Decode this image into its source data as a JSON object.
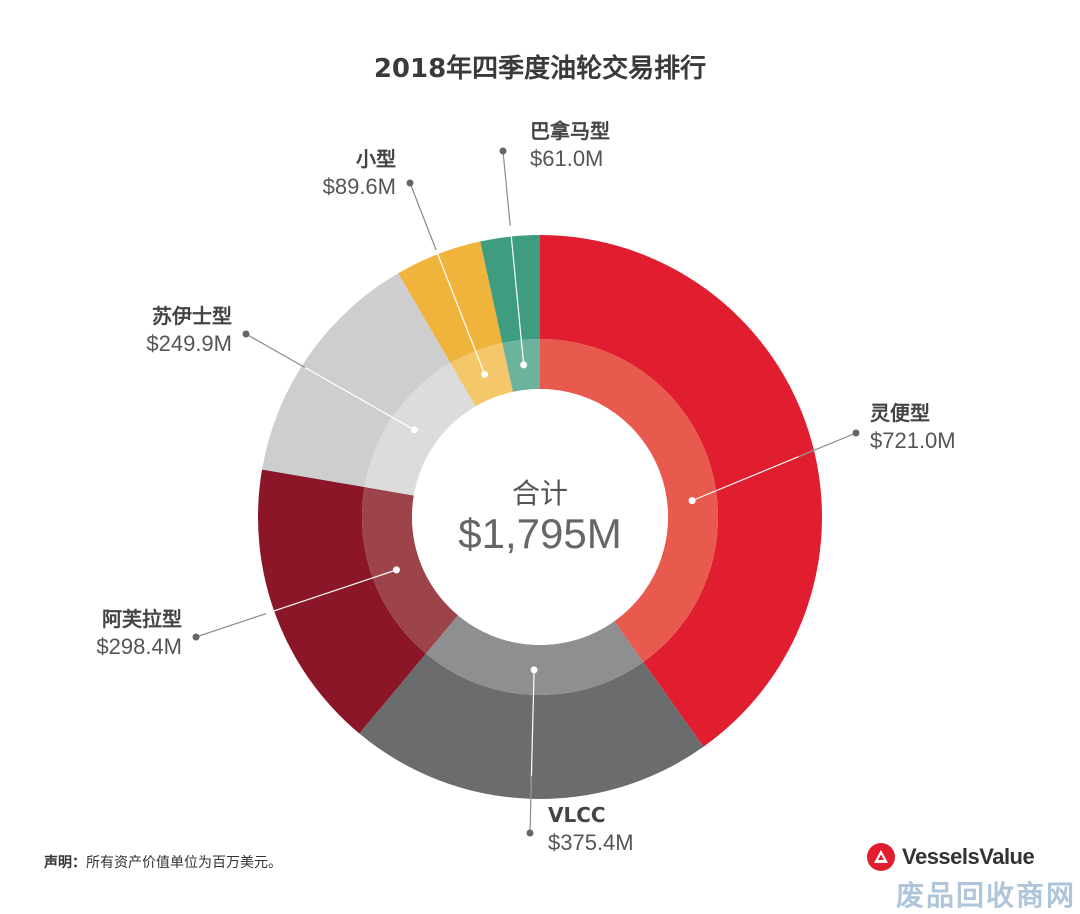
{
  "chart_data": {
    "type": "pie",
    "variant": "donut",
    "title": "2018年四季度油轮交易排行",
    "center_label": "合计",
    "center_value": "$1,795M",
    "unit": "$M",
    "total": 1795,
    "slices": [
      {
        "key": "handy",
        "name": "灵便型",
        "value": 721.0,
        "label": "$721.0M",
        "color": "#e01e30",
        "inner_color": "#e85a4e"
      },
      {
        "key": "vlcc",
        "name": "VLCC",
        "value": 375.4,
        "label": "$375.4M",
        "color": "#6b6c6e",
        "inner_color": "#8e8f91"
      },
      {
        "key": "aframax",
        "name": "阿芙拉型",
        "value": 298.4,
        "label": "$298.4M",
        "color": "#8a1628",
        "inner_color": "#9c4449"
      },
      {
        "key": "suezmax",
        "name": "苏伊士型",
        "value": 249.9,
        "label": "$249.9M",
        "color": "#cdcecf",
        "inner_color": "#dcdcdd"
      },
      {
        "key": "small",
        "name": "小型",
        "value": 89.6,
        "label": "$89.6M",
        "color": "#f0b43c",
        "inner_color": "#f4c76a"
      },
      {
        "key": "panamax",
        "name": "巴拿马型",
        "value": 61.0,
        "label": "$61.0M",
        "color": "#3e9c80",
        "inner_color": "#6cb39d"
      }
    ]
  },
  "footnote": {
    "prefix": "声明：",
    "text": "所有资产价值单位为百万美元。"
  },
  "brand": {
    "name": "VesselsValue",
    "color": "#e01e30"
  },
  "watermark": "废品回收商网"
}
